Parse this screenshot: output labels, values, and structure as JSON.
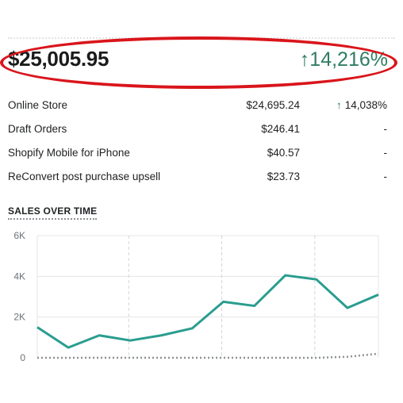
{
  "summary": {
    "total": "$25,005.95",
    "change": "14,216%"
  },
  "rows": [
    {
      "name": "Online Store",
      "value": "$24,695.24",
      "change": "14,038%",
      "trend": "up"
    },
    {
      "name": "Draft Orders",
      "value": "$246.41",
      "change": "-",
      "trend": "none"
    },
    {
      "name": "Shopify Mobile for iPhone",
      "value": "$40.57",
      "change": "-",
      "trend": "none"
    },
    {
      "name": "ReConvert post purchase upsell",
      "value": "$23.73",
      "change": "-",
      "trend": "none"
    }
  ],
  "sales_section": {
    "title": "SALES OVER TIME"
  },
  "colors": {
    "accent_green": "#2f7d62",
    "line_current": "#2a9d8f",
    "line_previous": "#8c9196",
    "annotation_red": "#d9151b"
  },
  "icons": {
    "trend_up": "arrow-up-icon"
  },
  "chart_data": {
    "type": "line",
    "x": [
      0,
      1,
      2,
      3,
      4,
      5,
      6,
      7,
      8,
      9,
      10,
      11
    ],
    "series": [
      {
        "values": [
          1500,
          500,
          1100,
          850,
          1100,
          1450,
          2750,
          2550,
          4050,
          3850,
          2450,
          3100
        ]
      },
      {
        "values": [
          0,
          0,
          0,
          0,
          0,
          0,
          0,
          0,
          0,
          0,
          50,
          200
        ]
      }
    ],
    "yticks": [
      "0",
      "2K",
      "4K",
      "6K"
    ],
    "ylim": [
      0,
      6000
    ],
    "grid": true
  }
}
